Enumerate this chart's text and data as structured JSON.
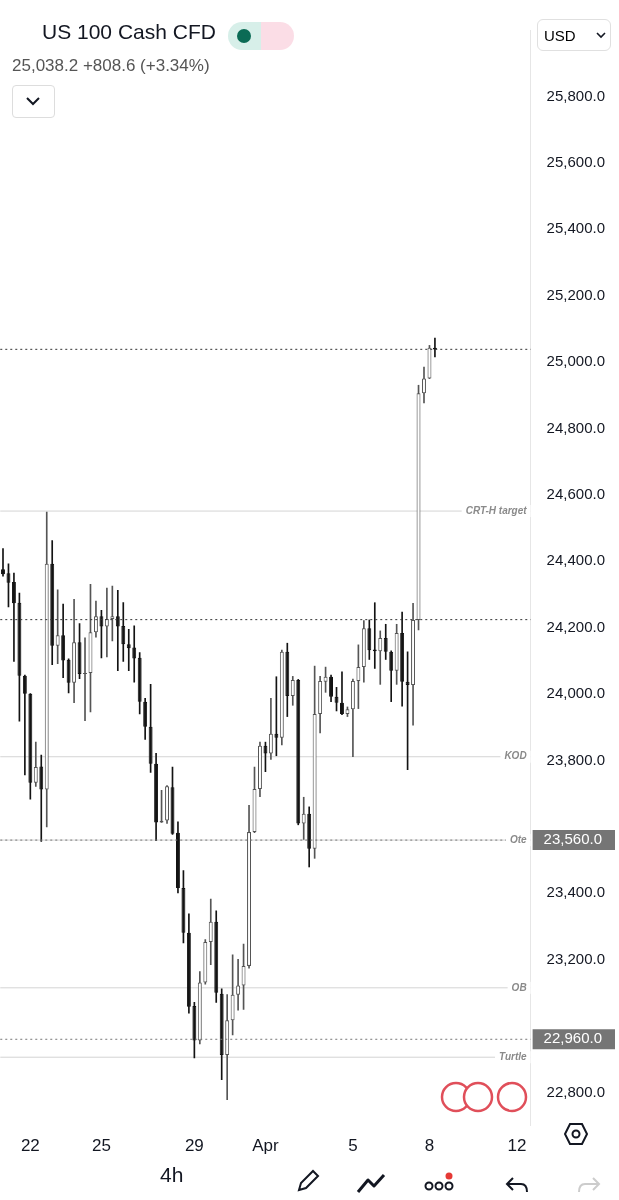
{
  "chart_data": {
    "type": "candlestick",
    "title": "US 100 Cash CFD",
    "subtitle": "25,038.2  +808.6 (+3.34%)",
    "categories": [
      null,
      null,
      null,
      null,
      null,
      "22",
      null,
      null,
      null,
      null,
      null,
      null,
      null,
      null,
      null,
      null,
      null,
      null,
      "25",
      null,
      null,
      null,
      null,
      null,
      null,
      null,
      null,
      null,
      null,
      null,
      null,
      null,
      null,
      null,
      null,
      "29",
      null,
      null,
      null,
      null,
      null,
      null,
      null,
      null,
      null,
      null,
      null,
      null,
      "Apr",
      null,
      null,
      null,
      null,
      null,
      null,
      null,
      null,
      null,
      null,
      null,
      null,
      null,
      null,
      null,
      "5",
      null,
      null,
      null,
      null,
      null,
      null,
      null,
      null,
      null,
      null,
      null,
      null,
      null,
      "8",
      null,
      null,
      null,
      null,
      null,
      null,
      null,
      null,
      null,
      null,
      null,
      null,
      null,
      null,
      null,
      "12",
      null,
      null
    ],
    "ohlc": [
      [
        24376,
        24438,
        24355,
        24361
      ],
      [
        24364,
        24392,
        24262,
        24335
      ],
      [
        24337,
        24364,
        24098,
        24273
      ],
      [
        24275,
        24304,
        23918,
        24055
      ],
      [
        24055,
        24057,
        23756,
        24001
      ],
      [
        24001,
        24001,
        23683,
        23733
      ],
      [
        23733,
        23855,
        23722,
        23780
      ],
      [
        23782,
        23816,
        23556,
        23712
      ],
      [
        23712,
        24548,
        23600,
        24392
      ],
      [
        24392,
        24462,
        24088,
        24145
      ],
      [
        24145,
        24314,
        24091,
        24177
      ],
      [
        24177,
        24271,
        24049,
        24101
      ],
      [
        24103,
        24106,
        24003,
        24034
      ],
      [
        24034,
        24285,
        23974,
        24156
      ],
      [
        24156,
        24212,
        24046,
        24060
      ],
      [
        24060,
        24169,
        23920,
        24063
      ],
      [
        24063,
        24330,
        23946,
        24186
      ],
      [
        24186,
        24280,
        24171,
        24234
      ],
      [
        24234,
        24252,
        24109,
        24203
      ],
      [
        24203,
        24319,
        24112,
        24226
      ],
      [
        24226,
        24325,
        24160,
        24234
      ],
      [
        24234,
        24312,
        24070,
        24203
      ],
      [
        24205,
        24275,
        24098,
        24150
      ],
      [
        24150,
        24195,
        24070,
        24138
      ],
      [
        24140,
        24205,
        24036,
        24107
      ],
      [
        24109,
        24125,
        23940,
        23977
      ],
      [
        23977,
        23987,
        23863,
        23901
      ],
      [
        23901,
        24029,
        23764,
        23790
      ],
      [
        23790,
        23821,
        23558,
        23613
      ],
      [
        23613,
        23710,
        23613,
        23618
      ],
      [
        23619,
        23724,
        23610,
        23722
      ],
      [
        23719,
        23780,
        23577,
        23579
      ],
      [
        23582,
        23615,
        23401,
        23416
      ],
      [
        23416,
        23468,
        23250,
        23281
      ],
      [
        23281,
        23338,
        23039,
        23058
      ],
      [
        23060,
        23071,
        22904,
        22956
      ],
      [
        22956,
        23164,
        22946,
        23131
      ],
      [
        23131,
        23260,
        23126,
        23253
      ],
      [
        23253,
        23382,
        23185,
        23314
      ],
      [
        23314,
        23347,
        23071,
        23100
      ],
      [
        23097,
        23112,
        22838,
        22913
      ],
      [
        22913,
        23095,
        22778,
        23017
      ],
      [
        23017,
        23214,
        22973,
        23094
      ],
      [
        23094,
        23201,
        23048,
        23122
      ],
      [
        23122,
        23247,
        23050,
        23181
      ],
      [
        23181,
        23665,
        23174,
        23584
      ],
      [
        23584,
        23780,
        23582,
        23714
      ],
      [
        23714,
        23855,
        23691,
        23844
      ],
      [
        23844,
        23855,
        23766,
        23821
      ],
      [
        23821,
        23987,
        23803,
        23880
      ],
      [
        23880,
        24052,
        23814,
        23868
      ],
      [
        23868,
        24132,
        23847,
        24127
      ],
      [
        24127,
        24153,
        23932,
        23994
      ],
      [
        23994,
        24053,
        23966,
        24042
      ],
      [
        24042,
        24044,
        23606,
        23610
      ],
      [
        23610,
        23689,
        23562,
        23639
      ],
      [
        23639,
        23660,
        23479,
        23534
      ],
      [
        23534,
        24084,
        23505,
        23940
      ],
      [
        23940,
        24053,
        23883,
        24039
      ],
      [
        24037,
        24081,
        24005,
        24052
      ],
      [
        24052,
        24057,
        23977,
        23992
      ],
      [
        23992,
        24020,
        23949,
        23974
      ],
      [
        23974,
        24067,
        23938,
        23940
      ],
      [
        23940,
        23961,
        23932,
        23954
      ],
      [
        23954,
        24045,
        23811,
        24039
      ],
      [
        24039,
        24148,
        23956,
        24081
      ],
      [
        24081,
        24221,
        24036,
        24198
      ],
      [
        24198,
        24223,
        24104,
        24132
      ],
      [
        24134,
        24275,
        24077,
        24129
      ],
      [
        24129,
        24190,
        24029,
        24169
      ],
      [
        24169,
        24210,
        24104,
        24127
      ],
      [
        24127,
        24130,
        23977,
        24070
      ],
      [
        24070,
        24210,
        24029,
        24184
      ],
      [
        24184,
        24247,
        23963,
        24037
      ],
      [
        24037,
        24127,
        23772,
        24027
      ],
      [
        24027,
        24273,
        23906,
        24223
      ],
      [
        24223,
        24930,
        24193,
        24906
      ],
      [
        24906,
        24985,
        24877,
        24950
      ],
      [
        24950,
        25050,
        24950,
        25043
      ],
      [
        25043,
        25072,
        25015,
        25038
      ],
      null,
      null,
      null,
      null,
      null,
      null,
      null,
      null,
      null,
      null,
      null,
      null,
      null,
      null,
      null,
      null,
      null
    ],
    "ylim": [
      22700,
      26000
    ],
    "yticks": [
      {
        "value": 22800,
        "label": "22,800.0"
      },
      {
        "value": 23200,
        "label": "23,200.0"
      },
      {
        "value": 23400,
        "label": "23,400.0"
      },
      {
        "value": 23800,
        "label": "23,800.0"
      },
      {
        "value": 24000,
        "label": "24,000.0"
      },
      {
        "value": 24200,
        "label": "24,200.0"
      },
      {
        "value": 24400,
        "label": "24,400.0"
      },
      {
        "value": 24600,
        "label": "24,600.0"
      },
      {
        "value": 24800,
        "label": "24,800.0"
      },
      {
        "value": 25000,
        "label": "25,000.0"
      },
      {
        "value": 25200,
        "label": "25,200.0"
      },
      {
        "value": 25400,
        "label": "25,400.0"
      },
      {
        "value": 25600,
        "label": "25,600.0"
      },
      {
        "value": 25800,
        "label": "25,800.0"
      }
    ],
    "ref_lines": [
      {
        "axis": "y",
        "value": 25038.2,
        "line_style": "dotted",
        "color": "#333333"
      },
      {
        "axis": "y",
        "value": 24224,
        "line_style": "dotted",
        "color": "#333333"
      },
      {
        "axis": "y",
        "value": 23560,
        "label": "23,560.0",
        "line_style": "dotted",
        "color": "#757575"
      },
      {
        "axis": "y",
        "value": 22960,
        "label": "22,960.0",
        "line_style": "dotted",
        "color": "#757575"
      },
      {
        "axis": "y",
        "value": 24551,
        "label": "CRT-H target",
        "line_style": "solid",
        "color": "#d4d4d4"
      },
      {
        "axis": "y",
        "value": 23811,
        "label": "KOD",
        "line_style": "solid",
        "color": "#d4d4d4"
      },
      {
        "axis": "y",
        "value": 23560,
        "label": "Ote",
        "line_style": "solid",
        "color": "#d4d4d4"
      },
      {
        "axis": "y",
        "value": 23115,
        "label": "OB",
        "line_style": "solid",
        "color": "#d4d4d4"
      },
      {
        "axis": "y",
        "value": 22906,
        "label": "Turtle",
        "line_style": "solid",
        "color": "#d4d4d4"
      }
    ],
    "annotations": [
      "USD",
      "4h"
    ]
  }
}
